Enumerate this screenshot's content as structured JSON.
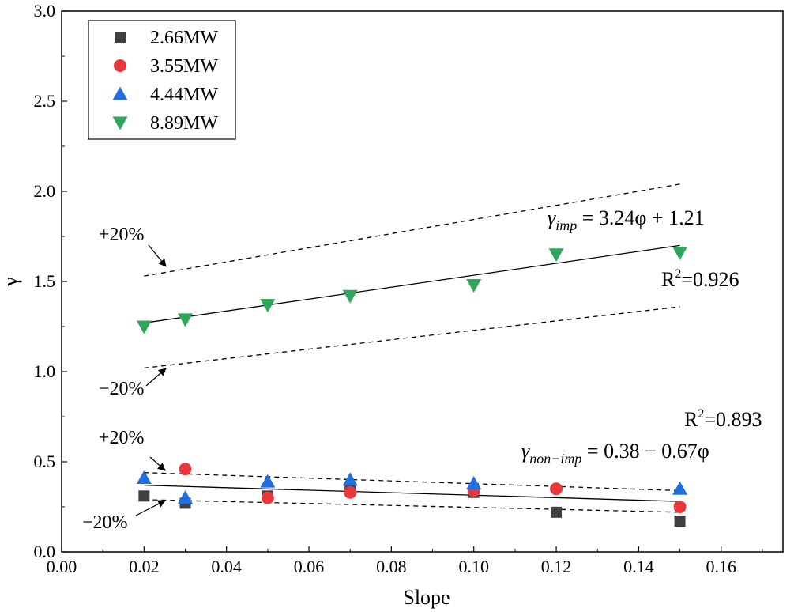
{
  "chart_data": {
    "type": "scatter",
    "xlabel": "Slope",
    "ylabel": "γ",
    "xlim": [
      0,
      0.175
    ],
    "ylim": [
      0,
      3.0
    ],
    "xticks": [
      0.0,
      0.02,
      0.04,
      0.06,
      0.08,
      0.1,
      0.12,
      0.14,
      0.16
    ],
    "xtick_labels": [
      "0.00",
      "0.02",
      "0.04",
      "0.06",
      "0.08",
      "0.10",
      "0.12",
      "0.14",
      "0.16"
    ],
    "yticks": [
      0.0,
      0.5,
      1.0,
      1.5,
      2.0,
      2.5,
      3.0
    ],
    "ytick_labels": [
      "0.0",
      "0.5",
      "1.0",
      "1.5",
      "2.0",
      "2.5",
      "3.0"
    ],
    "legend_position": "top-left",
    "series": [
      {
        "name": "2.66MW",
        "marker": "square",
        "color": "#404040",
        "x": [
          0.02,
          0.03,
          0.05,
          0.07,
          0.1,
          0.12,
          0.15
        ],
        "y": [
          0.31,
          0.27,
          0.31,
          0.35,
          0.33,
          0.22,
          0.17
        ]
      },
      {
        "name": "3.55MW",
        "marker": "circle",
        "color": "#e8383d",
        "x": [
          0.03,
          0.05,
          0.07,
          0.1,
          0.12,
          0.15
        ],
        "y": [
          0.46,
          0.3,
          0.33,
          0.34,
          0.35,
          0.25
        ]
      },
      {
        "name": "4.44MW",
        "marker": "triangle-up",
        "color": "#1f6fe0",
        "x": [
          0.02,
          0.03,
          0.05,
          0.07,
          0.1,
          0.15
        ],
        "y": [
          0.41,
          0.3,
          0.39,
          0.4,
          0.38,
          0.35
        ]
      },
      {
        "name": "8.89MW",
        "marker": "triangle-down",
        "color": "#2fa65c",
        "x": [
          0.02,
          0.03,
          0.05,
          0.07,
          0.1,
          0.12,
          0.15
        ],
        "y": [
          1.25,
          1.29,
          1.37,
          1.42,
          1.48,
          1.65,
          1.66
        ]
      }
    ],
    "fit_lines": [
      {
        "name": "gamma_imp fit",
        "style": "solid",
        "x": [
          0.02,
          0.15
        ],
        "y": [
          1.27,
          1.7
        ]
      },
      {
        "name": "gamma_imp +20%",
        "style": "dashed",
        "x": [
          0.02,
          0.15
        ],
        "y": [
          1.53,
          2.04
        ]
      },
      {
        "name": "gamma_imp -20%",
        "style": "dashed",
        "x": [
          0.02,
          0.15
        ],
        "y": [
          1.02,
          1.36
        ]
      },
      {
        "name": "gamma_non_imp fit",
        "style": "solid",
        "x": [
          0.02,
          0.15
        ],
        "y": [
          0.37,
          0.28
        ]
      },
      {
        "name": "gamma_non_imp +20%",
        "style": "dashed",
        "x": [
          0.02,
          0.15
        ],
        "y": [
          0.44,
          0.34
        ]
      },
      {
        "name": "gamma_non_imp -20%",
        "style": "dashed",
        "x": [
          0.02,
          0.15
        ],
        "y": [
          0.29,
          0.22
        ]
      }
    ],
    "annotations": {
      "eq_imp_main": "γ",
      "eq_imp_sub": "imp",
      "eq_imp_rest": " = 3.24φ + 1.21",
      "r2_imp_base": "R",
      "r2_imp_sup": "2",
      "r2_imp_val": "=0.926",
      "eq_non_main": "γ",
      "eq_non_sub": "non−imp",
      "eq_non_rest": " = 0.38 − 0.67φ",
      "r2_non_base": "R",
      "r2_non_sup": "2",
      "r2_non_val": "=0.893",
      "plus_upper": "+20%",
      "minus_upper": "−20%",
      "plus_lower": "+20%",
      "minus_lower": "−20%"
    }
  }
}
